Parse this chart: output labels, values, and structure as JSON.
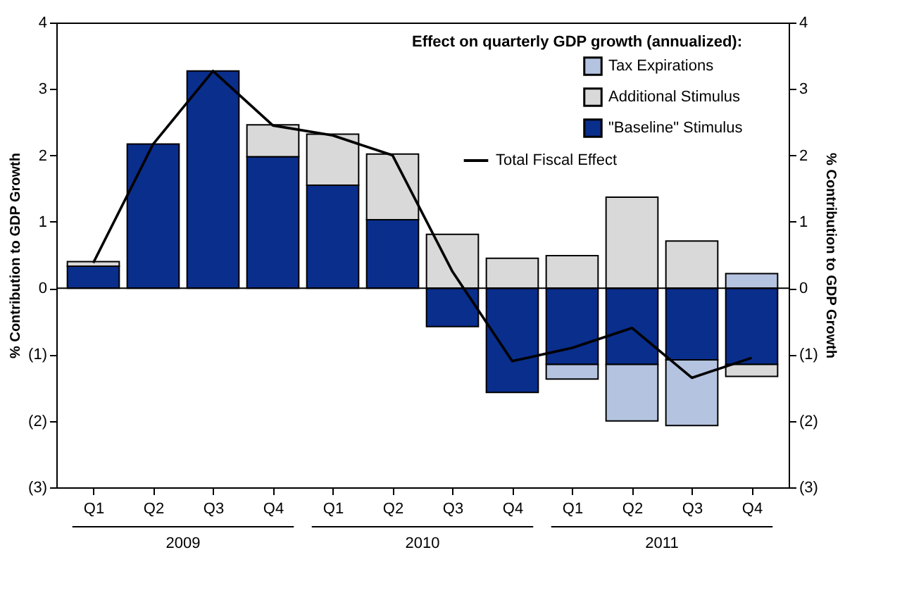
{
  "chart_data": {
    "type": "bar",
    "stacked": true,
    "legend_title": "Effect on quarterly GDP growth (annualized):",
    "ylabel": "% Contribution to GDP Growth",
    "y2label": "% Contribution to GDP Growth",
    "categories": [
      "Q1",
      "Q2",
      "Q3",
      "Q4",
      "Q1",
      "Q2",
      "Q3",
      "Q4",
      "Q1",
      "Q2",
      "Q3",
      "Q4"
    ],
    "series": [
      {
        "name": "\"Baseline\" Stimulus",
        "color": "#0a2e8c",
        "values": [
          0.33,
          2.17,
          3.27,
          1.98,
          1.55,
          1.03,
          -0.58,
          -1.57,
          -1.15,
          -1.15,
          -1.08,
          -1.15
        ]
      },
      {
        "name": "Additional Stimulus",
        "color": "#d9d9d9",
        "values": [
          0.07,
          null,
          null,
          0.48,
          0.77,
          0.99,
          0.81,
          0.45,
          0.49,
          1.37,
          0.71,
          -0.18
        ]
      },
      {
        "name": "Tax Expirations",
        "color": "#b4c3e0",
        "values": [
          null,
          null,
          null,
          null,
          null,
          null,
          null,
          null,
          -0.22,
          -0.85,
          -0.99,
          0.22
        ]
      },
      {
        "name": "Total Fiscal Effect",
        "type": "line",
        "color": "#000000",
        "values": [
          0.38,
          2.17,
          3.27,
          2.45,
          2.3,
          2.0,
          0.25,
          -1.1,
          -0.9,
          -0.6,
          -1.35,
          -1.05
        ]
      }
    ],
    "ylim": [
      -3,
      4
    ],
    "yticks": [
      {
        "value": -3,
        "label": "(3)"
      },
      {
        "value": -2,
        "label": "(2)"
      },
      {
        "value": -1,
        "label": "(1)"
      },
      0,
      1,
      2,
      3,
      4
    ],
    "y2lim": [
      -3,
      4
    ],
    "y2ticks": [
      {
        "value": -3,
        "label": "(3)"
      },
      {
        "value": -2,
        "label": "(2)"
      },
      {
        "value": -1,
        "label": "(1)"
      },
      0,
      1,
      2,
      3,
      4
    ],
    "annotations": [
      "2009",
      "2010",
      "2011"
    ],
    "ref_lines": [
      {
        "axis": "y",
        "value": 0
      }
    ],
    "grid": false,
    "legend": "top right",
    "marker": "none"
  }
}
